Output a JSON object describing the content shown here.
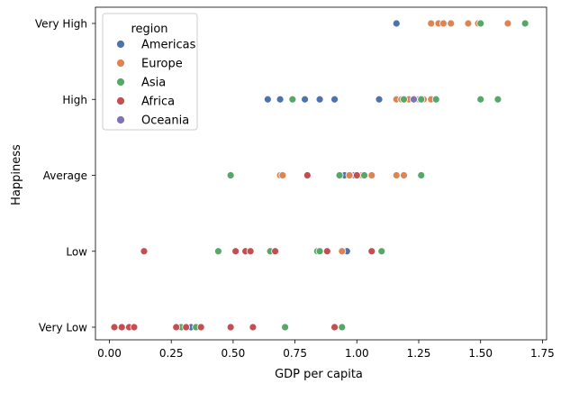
{
  "chart_data": {
    "type": "scatter",
    "xlabel": "GDP per capita",
    "ylabel": "Happiness",
    "xlim": [
      -0.04,
      1.77
    ],
    "xticks": [
      0.0,
      0.25,
      0.5,
      0.75,
      1.0,
      1.25,
      1.5,
      1.75
    ],
    "xtick_labels": [
      "0.00",
      "0.25",
      "0.50",
      "0.75",
      "1.00",
      "1.25",
      "1.50",
      "1.75"
    ],
    "categories": [
      "Very High",
      "High",
      "Average",
      "Low",
      "Very Low"
    ],
    "grid": false,
    "legend": {
      "title": "region",
      "placement": "top-left"
    },
    "colors": {
      "Americas": "#4c72b0",
      "Europe": "#dd8452",
      "Asia": "#55a868",
      "Africa": "#c44e52",
      "Oceania": "#8172b3"
    },
    "series": [
      {
        "name": "Americas",
        "points": [
          {
            "x": 1.16,
            "y": "Very High"
          },
          {
            "x": 0.64,
            "y": "High"
          },
          {
            "x": 0.69,
            "y": "High"
          },
          {
            "x": 0.79,
            "y": "High"
          },
          {
            "x": 0.85,
            "y": "High"
          },
          {
            "x": 0.91,
            "y": "High"
          },
          {
            "x": 1.09,
            "y": "High"
          },
          {
            "x": 1.24,
            "y": "High"
          },
          {
            "x": 0.95,
            "y": "Average"
          },
          {
            "x": 0.99,
            "y": "Average"
          },
          {
            "x": 0.96,
            "y": "Low"
          },
          {
            "x": 0.33,
            "y": "Very Low"
          }
        ]
      },
      {
        "name": "Europe",
        "points": [
          {
            "x": 1.3,
            "y": "Very High"
          },
          {
            "x": 1.33,
            "y": "Very High"
          },
          {
            "x": 1.35,
            "y": "Very High"
          },
          {
            "x": 1.38,
            "y": "Very High"
          },
          {
            "x": 1.45,
            "y": "Very High"
          },
          {
            "x": 1.49,
            "y": "Very High"
          },
          {
            "x": 1.61,
            "y": "Very High"
          },
          {
            "x": 1.16,
            "y": "High"
          },
          {
            "x": 1.18,
            "y": "High"
          },
          {
            "x": 1.2,
            "y": "High"
          },
          {
            "x": 1.21,
            "y": "High"
          },
          {
            "x": 1.23,
            "y": "High"
          },
          {
            "x": 1.25,
            "y": "High"
          },
          {
            "x": 1.27,
            "y": "High"
          },
          {
            "x": 1.3,
            "y": "High"
          },
          {
            "x": 0.69,
            "y": "Average"
          },
          {
            "x": 0.7,
            "y": "Average"
          },
          {
            "x": 0.97,
            "y": "Average"
          },
          {
            "x": 1.02,
            "y": "Average"
          },
          {
            "x": 1.06,
            "y": "Average"
          },
          {
            "x": 1.16,
            "y": "Average"
          },
          {
            "x": 1.19,
            "y": "Average"
          },
          {
            "x": 0.94,
            "y": "Low"
          },
          {
            "x": 0.36,
            "y": "Very Low"
          }
        ]
      },
      {
        "name": "Asia",
        "points": [
          {
            "x": 1.5,
            "y": "Very High"
          },
          {
            "x": 1.68,
            "y": "Very High"
          },
          {
            "x": 0.74,
            "y": "High"
          },
          {
            "x": 1.19,
            "y": "High"
          },
          {
            "x": 1.26,
            "y": "High"
          },
          {
            "x": 1.32,
            "y": "High"
          },
          {
            "x": 1.5,
            "y": "High"
          },
          {
            "x": 1.57,
            "y": "High"
          },
          {
            "x": 0.49,
            "y": "Average"
          },
          {
            "x": 0.93,
            "y": "Average"
          },
          {
            "x": 1.03,
            "y": "Average"
          },
          {
            "x": 1.26,
            "y": "Average"
          },
          {
            "x": 0.44,
            "y": "Low"
          },
          {
            "x": 0.65,
            "y": "Low"
          },
          {
            "x": 0.84,
            "y": "Low"
          },
          {
            "x": 0.85,
            "y": "Low"
          },
          {
            "x": 1.1,
            "y": "Low"
          },
          {
            "x": 0.29,
            "y": "Very Low"
          },
          {
            "x": 0.35,
            "y": "Very Low"
          },
          {
            "x": 0.71,
            "y": "Very Low"
          },
          {
            "x": 0.94,
            "y": "Very Low"
          }
        ]
      },
      {
        "name": "Africa",
        "points": [
          {
            "x": 0.8,
            "y": "Average"
          },
          {
            "x": 1.0,
            "y": "Average"
          },
          {
            "x": 0.14,
            "y": "Low"
          },
          {
            "x": 0.51,
            "y": "Low"
          },
          {
            "x": 0.55,
            "y": "Low"
          },
          {
            "x": 0.57,
            "y": "Low"
          },
          {
            "x": 0.67,
            "y": "Low"
          },
          {
            "x": 0.88,
            "y": "Low"
          },
          {
            "x": 1.06,
            "y": "Low"
          },
          {
            "x": 0.02,
            "y": "Very Low"
          },
          {
            "x": 0.05,
            "y": "Very Low"
          },
          {
            "x": 0.08,
            "y": "Very Low"
          },
          {
            "x": 0.1,
            "y": "Very Low"
          },
          {
            "x": 0.27,
            "y": "Very Low"
          },
          {
            "x": 0.31,
            "y": "Very Low"
          },
          {
            "x": 0.37,
            "y": "Very Low"
          },
          {
            "x": 0.49,
            "y": "Very Low"
          },
          {
            "x": 0.58,
            "y": "Very Low"
          },
          {
            "x": 0.91,
            "y": "Very Low"
          }
        ]
      },
      {
        "name": "Oceania",
        "points": [
          {
            "x": 1.23,
            "y": "High"
          }
        ]
      }
    ]
  }
}
